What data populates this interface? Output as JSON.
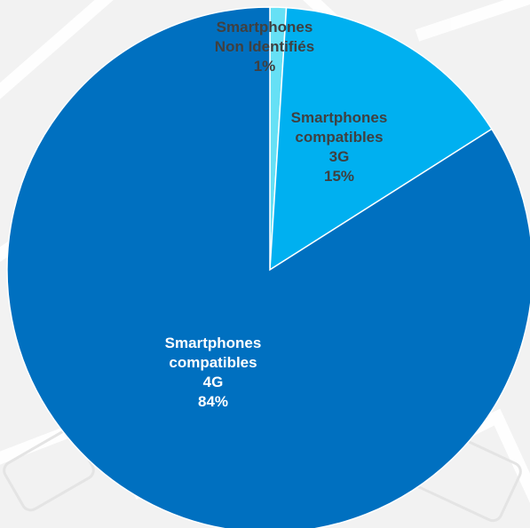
{
  "chart_data": {
    "type": "pie",
    "title": "",
    "start_angle_deg": 0,
    "direction": "clockwise",
    "slices": [
      {
        "key": "non-identifies",
        "label_lines": [
          "Smartphones",
          "Non Identifiés",
          "1%"
        ],
        "value": 1,
        "color": "#66E0F5",
        "label_color": "#404040"
      },
      {
        "key": "3g",
        "label_lines": [
          "Smartphones",
          "compatibles",
          "3G",
          "15%"
        ],
        "value": 15,
        "color": "#00B0F0",
        "label_color": "#404040"
      },
      {
        "key": "4g",
        "label_lines": [
          "Smartphones",
          "compatibles",
          "4G",
          "84%"
        ],
        "value": 84,
        "color": "#0070C0",
        "label_color": "#FFFFFF"
      }
    ],
    "slice_border_color": "#FFFFFF",
    "legend": "none",
    "background_color": "#F2F2F2"
  }
}
